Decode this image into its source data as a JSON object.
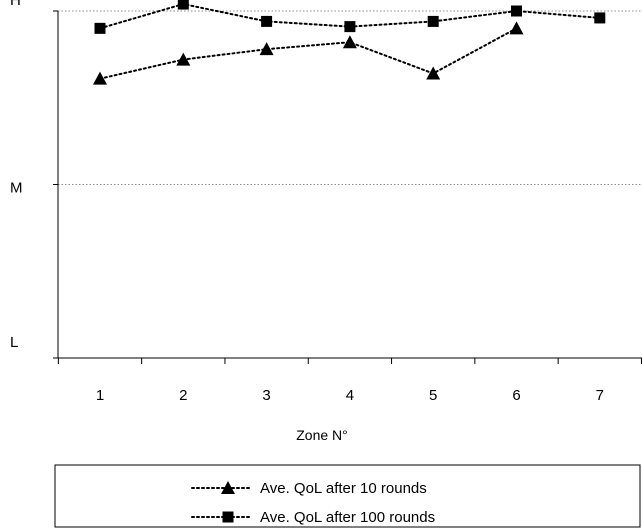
{
  "chart_data": {
    "type": "line",
    "title": "",
    "xlabel": "Zone N°",
    "ylabel": "",
    "categories": [
      "1",
      "2",
      "3",
      "4",
      "5",
      "6",
      "7"
    ],
    "ytick_labels": [
      "H",
      "M",
      "L"
    ],
    "ylim": [
      0,
      100
    ],
    "grid": "horizontal dotted at H and M",
    "legend_position": "bottom",
    "series": [
      {
        "name": "Ave. QoL after 10 rounds",
        "marker": "triangle",
        "line_style": "dotted",
        "color": "#000000",
        "values": [
          80.5,
          86,
          89,
          91,
          82,
          95,
          null
        ]
      },
      {
        "name": "Ave. QoL after 100 rounds",
        "marker": "square",
        "line_style": "dotted",
        "color": "#000000",
        "values": [
          95,
          102,
          97,
          95.5,
          97,
          100,
          98
        ]
      }
    ]
  }
}
